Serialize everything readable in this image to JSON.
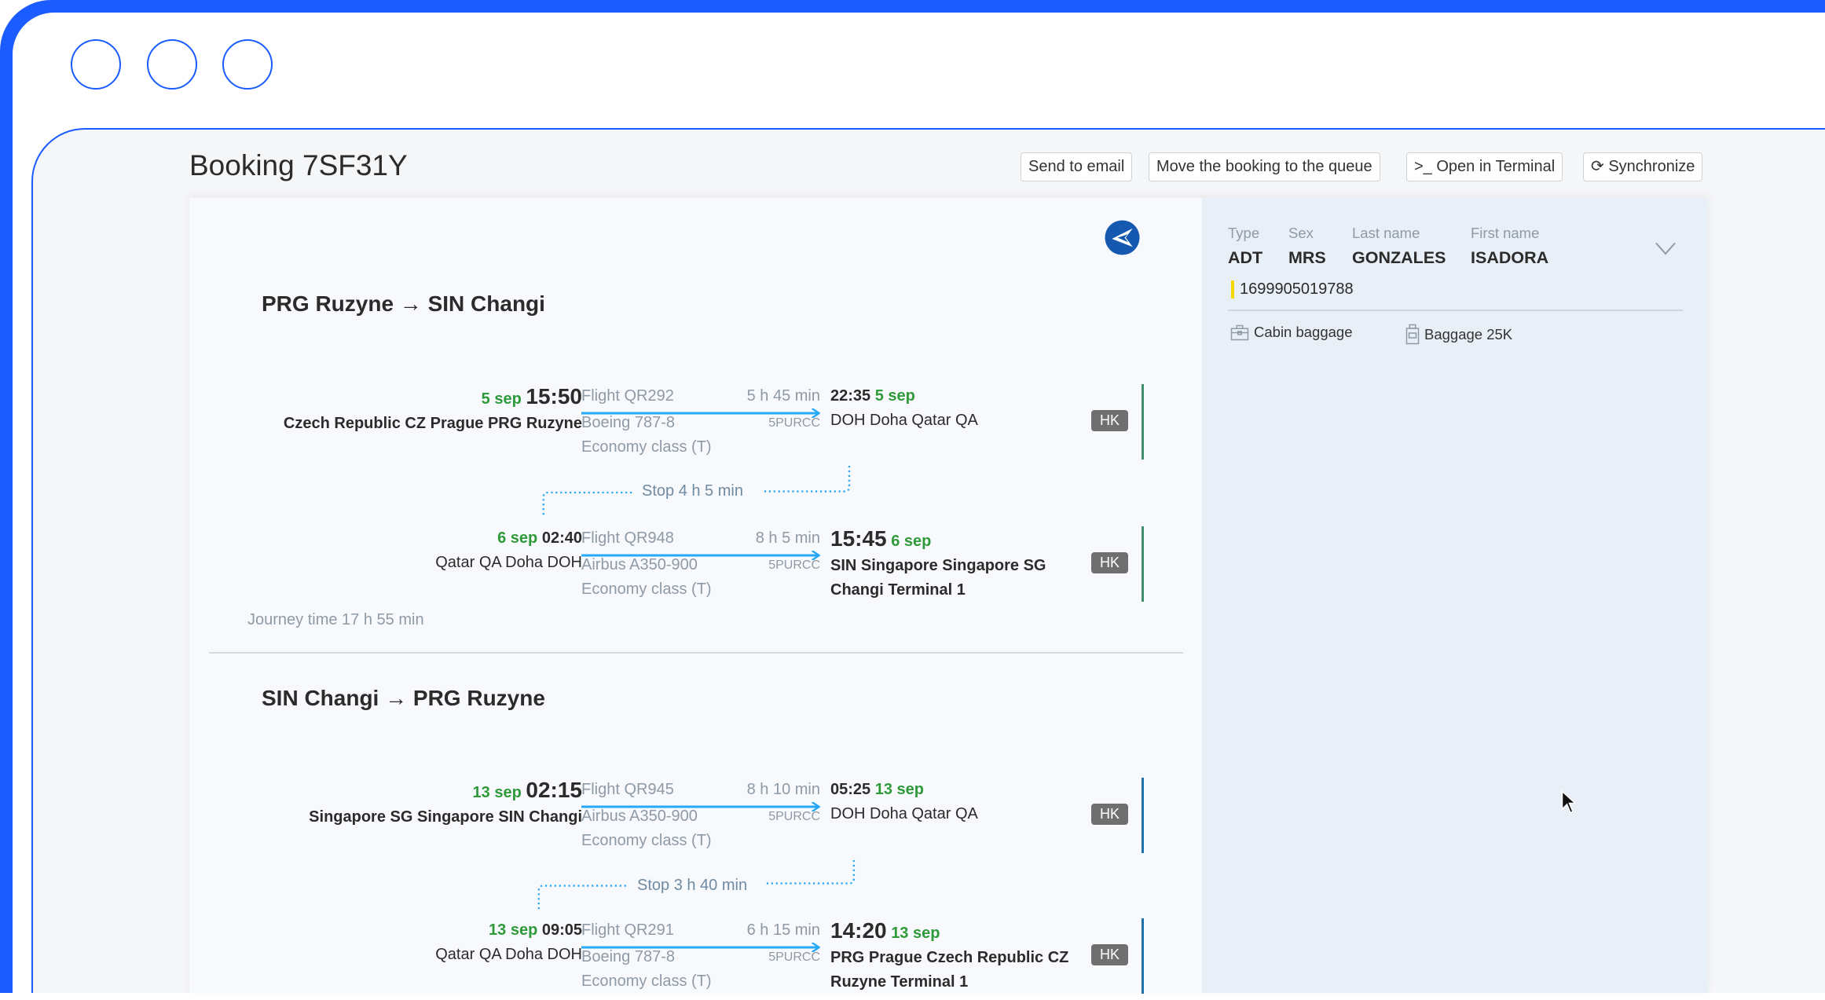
{
  "window": {
    "accent_color": "#1a5cff"
  },
  "header": {
    "title": "Booking 7SF31Y",
    "buttons": {
      "send_email": "Send to email",
      "move_queue": "Move the booking to the queue",
      "open_terminal": ">_ Open in Terminal",
      "synchronize": "Synchronize"
    }
  },
  "journeys": [
    {
      "route": "PRG Ruzyne → SIN Changi",
      "bar_color": "#3d8f6f",
      "segments": [
        {
          "dep_date": "5 sep",
          "dep_time": "15:50",
          "dep_loc": "Czech Republic CZ Prague PRG Ruzyne",
          "flight": "Flight QR292",
          "duration": "5 h 45 min",
          "aircraft": "Boeing 787-8",
          "code": "5PURCC",
          "cabin": "Economy class (T)",
          "arr_time": "22:35",
          "arr_date": "5 sep",
          "arr_loc": "DOH Doha Qatar QA",
          "status": "HK"
        },
        {
          "dep_date": "6 sep",
          "dep_time": "02:40",
          "dep_loc": "Qatar QA Doha DOH",
          "flight": "Flight QR948",
          "duration": "8 h 5 min",
          "aircraft": "Airbus A350-900",
          "code": "5PURCC",
          "cabin": "Economy class (T)",
          "arr_time": "15:45",
          "arr_date": "6 sep",
          "arr_loc": "SIN Singapore Singapore SG Changi Terminal 1",
          "status": "HK"
        }
      ],
      "stop": "Stop 4 h 5 min",
      "journey_time": "Journey time 17 h 55 min"
    },
    {
      "route": "SIN Changi → PRG Ruzyne",
      "bar_color": "#1f6fa8",
      "segments": [
        {
          "dep_date": "13 sep",
          "dep_time": "02:15",
          "dep_loc": "Singapore SG Singapore SIN Changi",
          "flight": "Flight QR945",
          "duration": "8 h 10 min",
          "aircraft": "Airbus A350-900",
          "code": "5PURCC",
          "cabin": "Economy class (T)",
          "arr_time": "05:25",
          "arr_date": "13 sep",
          "arr_loc": "DOH Doha Qatar QA",
          "status": "HK"
        },
        {
          "dep_date": "13 sep",
          "dep_time": "09:05",
          "dep_loc": "Qatar QA Doha DOH",
          "flight": "Flight QR291",
          "duration": "6 h 15 min",
          "aircraft": "Boeing 787-8",
          "code": "5PURCC",
          "cabin": "Economy class (T)",
          "arr_time": "14:20",
          "arr_date": "13 sep",
          "arr_loc": "PRG Prague Czech Republic CZ Ruzyne Terminal 1",
          "status": "HK"
        }
      ],
      "stop": "Stop 3 h 40 min"
    }
  ],
  "passenger": {
    "labels": {
      "type": "Type",
      "sex": "Sex",
      "last_name": "Last name",
      "first_name": "First name"
    },
    "type": "ADT",
    "sex": "MRS",
    "last_name": "GONZALES",
    "first_name": "ISADORA",
    "ticket": "1699905019788",
    "baggage": {
      "cabin": "Cabin baggage",
      "checked": "Baggage 25K"
    }
  }
}
